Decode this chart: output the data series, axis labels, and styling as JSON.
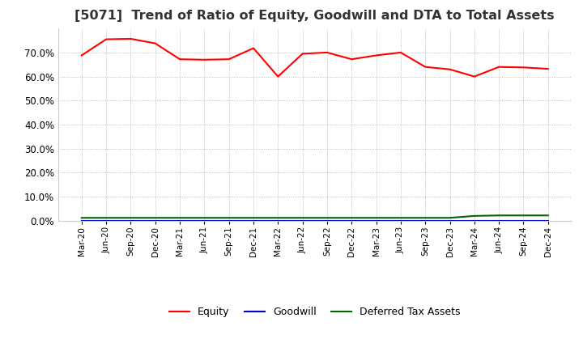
{
  "title": "[5071]  Trend of Ratio of Equity, Goodwill and DTA to Total Assets",
  "title_fontsize": 11.5,
  "ylim": [
    0.0,
    0.8
  ],
  "yticks": [
    0.0,
    0.1,
    0.2,
    0.3,
    0.4,
    0.5,
    0.6,
    0.7
  ],
  "background_color": "#ffffff",
  "plot_bg_color": "#ffffff",
  "grid_color": "#aaaaaa",
  "dates": [
    "Mar-20",
    "Jun-20",
    "Sep-20",
    "Dec-20",
    "Mar-21",
    "Jun-21",
    "Sep-21",
    "Dec-21",
    "Mar-22",
    "Jun-22",
    "Sep-22",
    "Dec-22",
    "Mar-23",
    "Jun-23",
    "Sep-23",
    "Dec-23",
    "Mar-24",
    "Jun-24",
    "Sep-24",
    "Dec-24"
  ],
  "equity": [
    0.688,
    0.755,
    0.757,
    0.738,
    0.672,
    0.67,
    0.672,
    0.718,
    0.6,
    0.695,
    0.7,
    0.672,
    0.688,
    0.7,
    0.64,
    0.63,
    0.6,
    0.64,
    0.638,
    0.632
  ],
  "goodwill": [
    0.0,
    0.0,
    0.0,
    0.0,
    0.0,
    0.0,
    0.0,
    0.0,
    0.0,
    0.0,
    0.0,
    0.0,
    0.0,
    0.0,
    0.0,
    0.0,
    0.0,
    0.0,
    0.0,
    0.0
  ],
  "dta": [
    0.012,
    0.012,
    0.012,
    0.012,
    0.012,
    0.012,
    0.012,
    0.012,
    0.012,
    0.012,
    0.012,
    0.012,
    0.012,
    0.012,
    0.012,
    0.012,
    0.02,
    0.022,
    0.022,
    0.022
  ],
  "equity_color": "#ff0000",
  "goodwill_color": "#0000cc",
  "dta_color": "#006600",
  "legend_labels": [
    "Equity",
    "Goodwill",
    "Deferred Tax Assets"
  ],
  "linewidth": 1.5
}
